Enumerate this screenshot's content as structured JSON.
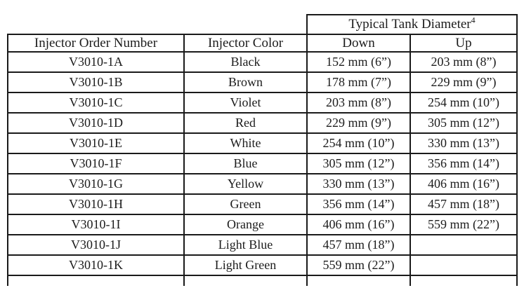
{
  "table": {
    "span_header": {
      "label": "Typical Tank Diameter",
      "superscript": "4"
    },
    "columns": {
      "order": "Injector Order Number",
      "color": "Injector Color",
      "down": "Down",
      "up": "Up"
    },
    "rows": [
      {
        "order": "V3010-1A",
        "color": "Black",
        "down": "152 mm (6”)",
        "up": "203 mm (8”)"
      },
      {
        "order": "V3010-1B",
        "color": "Brown",
        "down": "178 mm (7”)",
        "up": "229 mm (9”)"
      },
      {
        "order": "V3010-1C",
        "color": "Violet",
        "down": "203 mm (8”)",
        "up": "254 mm (10”)"
      },
      {
        "order": "V3010-1D",
        "color": "Red",
        "down": "229 mm (9”)",
        "up": "305 mm (12”)"
      },
      {
        "order": "V3010-1E",
        "color": "White",
        "down": "254 mm (10”)",
        "up": "330 mm (13”)"
      },
      {
        "order": "V3010-1F",
        "color": "Blue",
        "down": "305 mm (12”)",
        "up": "356 mm (14”)"
      },
      {
        "order": "V3010-1G",
        "color": "Yellow",
        "down": "330 mm (13”)",
        "up": "406 mm (16”)"
      },
      {
        "order": "V3010-1H",
        "color": "Green",
        "down": "356 mm (14”)",
        "up": "457 mm (18”)"
      },
      {
        "order": "V3010-1I",
        "color": "Orange",
        "down": "406 mm (16”)",
        "up": "559 mm (22”)"
      },
      {
        "order": "V3010-1J",
        "color": "Light Blue",
        "down": "457 mm (18”)",
        "up": ""
      },
      {
        "order": "V3010-1K",
        "color": "Light Green",
        "down": "559 mm (22”)",
        "up": ""
      }
    ],
    "colors": {
      "border": "#1a1a1a",
      "text": "#1c1c1c",
      "background": "#ffffff"
    }
  }
}
